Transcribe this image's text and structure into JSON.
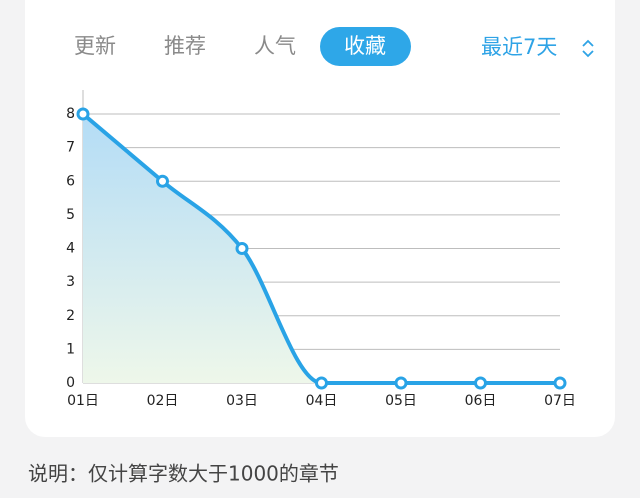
{
  "tabs": [
    "更新",
    "推荐",
    "人气",
    "收藏"
  ],
  "active_tab": 3,
  "range_selector": "最近7天",
  "chart_data": {
    "type": "line",
    "categories": [
      "01日",
      "02日",
      "03日",
      "04日",
      "05日",
      "06日",
      "07日"
    ],
    "values": [
      8,
      6,
      4,
      0,
      0,
      0,
      0
    ],
    "color": "#29a3e6",
    "ylim": [
      0,
      8
    ],
    "yticks": [
      0,
      1,
      2,
      3,
      4,
      5,
      6,
      7,
      8
    ],
    "grid": true,
    "smooth": true,
    "area": true
  },
  "note": "说明：仅计算字数大于1000的章节"
}
